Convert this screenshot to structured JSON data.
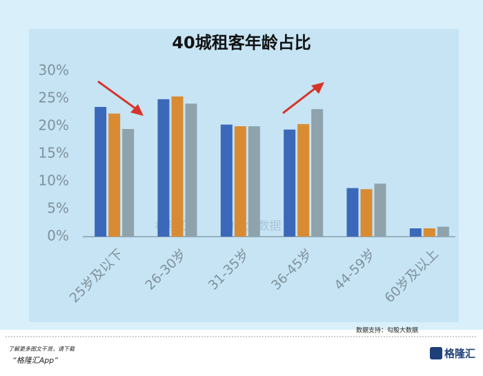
{
  "chart_data": {
    "type": "bar",
    "title": "40城租客年龄占比",
    "categories": [
      "25岁及以下",
      "26-30岁",
      "31-35岁",
      "36-45岁",
      "44-59岁",
      "60岁及以上"
    ],
    "series": [
      {
        "color": "#3b68b9",
        "values": [
          23.5,
          24.9,
          20.3,
          19.4,
          8.8,
          1.5
        ]
      },
      {
        "color": "#d98b34",
        "values": [
          22.3,
          25.4,
          20.0,
          20.4,
          8.6,
          1.5
        ]
      },
      {
        "color": "#8fa3ad",
        "values": [
          19.5,
          24.1,
          20.0,
          23.1,
          9.6,
          1.8
        ]
      }
    ],
    "ylim": [
      0,
      30
    ],
    "yticks": [
      {
        "value": 0,
        "label": "0%"
      },
      {
        "value": 5,
        "label": "5%"
      },
      {
        "value": 10,
        "label": "10%"
      },
      {
        "value": 15,
        "label": "15%"
      },
      {
        "value": 20,
        "label": "20%"
      },
      {
        "value": 25,
        "label": "25%"
      },
      {
        "value": 30,
        "label": "30%"
      }
    ],
    "watermarks": [
      "格隆汇",
      "勾股大数据"
    ]
  },
  "footer": {
    "source": "数据支持：勾股大数据",
    "note": "了解更多图文干货，请下载",
    "app": "“格隆汇App”",
    "logo": "格隆汇"
  }
}
